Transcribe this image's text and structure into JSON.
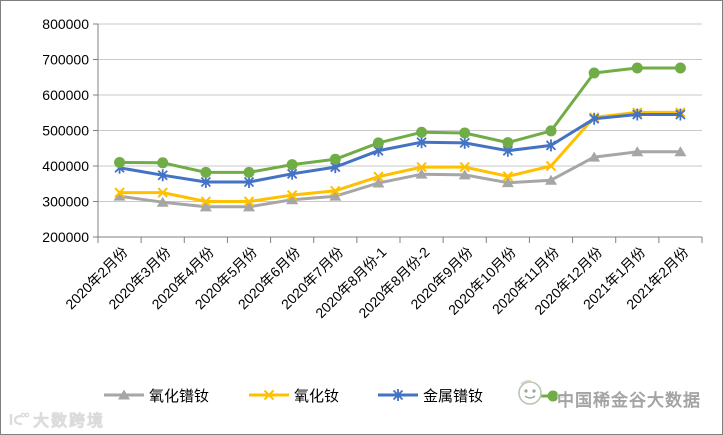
{
  "chart_data": {
    "type": "line",
    "title": "",
    "categories": [
      "2020年2月份",
      "2020年3月份",
      "2020年4月份",
      "2020年5月份",
      "2020年6月份",
      "2020年7月份",
      "2020年8月份-1",
      "2020年8月份-2",
      "2020年9月份",
      "2020年10月份",
      "2020年11月份",
      "2020年12月份",
      "2021年1月份",
      "2021年2月份"
    ],
    "series": [
      {
        "name": "氧化镨钕",
        "color": "#a6a6a6",
        "marker": "triangle",
        "values": [
          315000,
          298000,
          285000,
          285000,
          305000,
          315000,
          352000,
          377000,
          375000,
          353000,
          360000,
          425000,
          440000,
          440000
        ]
      },
      {
        "name": "氧化钕",
        "color": "#ffc000",
        "marker": "x",
        "values": [
          325000,
          325000,
          300000,
          300000,
          318000,
          330000,
          370000,
          397000,
          397000,
          371000,
          400000,
          537000,
          551000,
          551000
        ]
      },
      {
        "name": "金属镨钕",
        "color": "#4472c4",
        "marker": "asterisk",
        "values": [
          395000,
          374000,
          355000,
          355000,
          378000,
          397000,
          443000,
          467000,
          465000,
          443000,
          458000,
          533000,
          545000,
          545000
        ]
      },
      {
        "name": "",
        "label_obscured_by_watermark": true,
        "color": "#70ad47",
        "marker": "circle",
        "values": [
          410000,
          409000,
          382000,
          382000,
          404000,
          419000,
          465000,
          495000,
          493000,
          466000,
          499000,
          662000,
          676000,
          676000
        ]
      }
    ],
    "ylim": [
      200000,
      800000
    ],
    "ytick_interval": 100000,
    "yticks": [
      "800000",
      "700000",
      "600000",
      "500000",
      "400000",
      "300000",
      "200000"
    ],
    "xlabel": "",
    "ylabel": "",
    "grid": true,
    "legend_position": "bottom"
  },
  "colors": {
    "gridline": "#c9c9c9",
    "axis": "#808080",
    "text": "#000000"
  },
  "watermarks": {
    "legend_overlay_text": "中国稀金谷大数据",
    "corner_text": "大数跨境"
  }
}
